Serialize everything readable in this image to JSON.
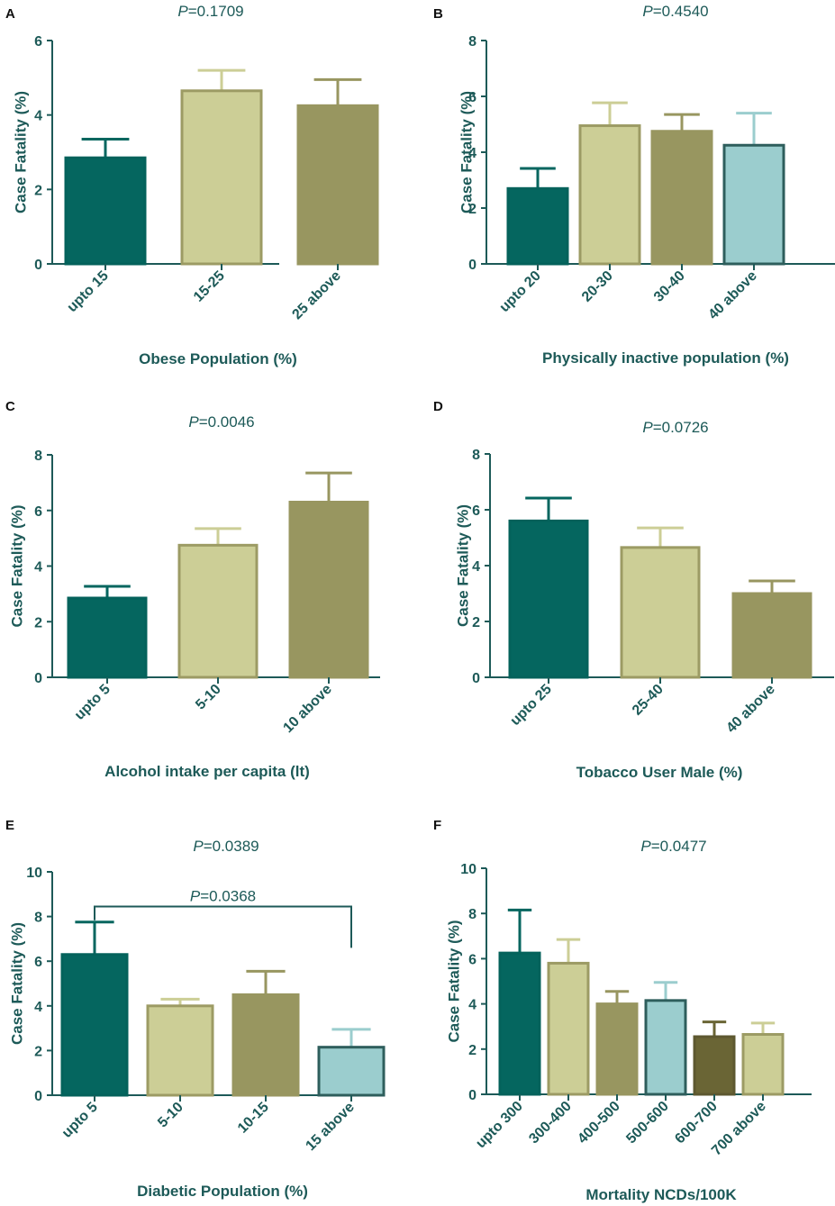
{
  "colors": {
    "axis": "#1d5a58",
    "text": "#1d5a58",
    "letter": "#111111",
    "dark_teal": "#05665f",
    "khaki": "#ccce96",
    "olive": "#989660",
    "light_blue": "#9bcdce",
    "dark_olive": "#6a6535",
    "khaki_border": "#9c9b64",
    "olive_border": "#989660",
    "teal_border": "#04625b",
    "blue_border": "#2e5e5c",
    "dark_olive_border": "#5d5830"
  },
  "chart_data": [
    {
      "type": "bar",
      "panel": "A",
      "title_p": "P",
      "title_value": "=0.1709",
      "xlabel": "Obese Population (%)",
      "ylabel": "Case Fatality (%)",
      "ylim": [
        0,
        6
      ],
      "yticks": [
        "0",
        "2",
        "4",
        "6"
      ],
      "categories": [
        "upto 15",
        "15-25",
        "25 above"
      ],
      "values": [
        2.85,
        4.65,
        4.25
      ],
      "errors": [
        0.5,
        0.55,
        0.7
      ],
      "fills": [
        "dark_teal",
        "khaki",
        "olive"
      ]
    },
    {
      "type": "bar",
      "panel": "B",
      "title_p": "P",
      "title_value": "=0.4540",
      "xlabel": "Physically inactive population (%)",
      "ylabel": "Case Fatality (%)",
      "ylim": [
        0,
        8
      ],
      "yticks": [
        "0",
        "2",
        "4",
        "6",
        "8"
      ],
      "categories": [
        "upto 20",
        "20-30",
        "30-40",
        "40 above"
      ],
      "values": [
        2.7,
        4.95,
        4.75,
        4.25
      ],
      "errors": [
        0.72,
        0.82,
        0.6,
        1.15
      ],
      "fills": [
        "dark_teal",
        "khaki",
        "olive",
        "light_blue"
      ]
    },
    {
      "type": "bar",
      "panel": "C",
      "title_p": "P",
      "title_value": "=0.0046",
      "xlabel": "Alcohol intake per capita (lt)",
      "ylabel": "Case Fatality (%)",
      "ylim": [
        0,
        8
      ],
      "yticks": [
        "0",
        "2",
        "4",
        "6",
        "8"
      ],
      "categories": [
        "upto 5",
        "5-10",
        "10 above"
      ],
      "values": [
        2.85,
        4.75,
        6.3
      ],
      "errors": [
        0.42,
        0.6,
        1.05
      ],
      "fills": [
        "dark_teal",
        "khaki",
        "olive"
      ]
    },
    {
      "type": "bar",
      "panel": "D",
      "title_p": "P",
      "title_value": "=0.0726",
      "xlabel": "Tobacco User Male (%)",
      "ylabel": "Case Fatality (%)",
      "ylim": [
        0,
        8
      ],
      "yticks": [
        "0",
        "2",
        "4",
        "6",
        "8"
      ],
      "categories": [
        "upto 25",
        "25-40",
        "40 above"
      ],
      "values": [
        5.6,
        4.65,
        3.0
      ],
      "errors": [
        0.82,
        0.7,
        0.45
      ],
      "fills": [
        "dark_teal",
        "khaki",
        "olive"
      ]
    },
    {
      "type": "bar",
      "panel": "E",
      "title_p": "P",
      "title_value": "=0.0389",
      "xlabel": "Diabetic Population (%)",
      "ylabel": "Case Fatality (%)",
      "ylim": [
        0,
        10
      ],
      "yticks": [
        "0",
        "2",
        "4",
        "6",
        "8",
        "10"
      ],
      "categories": [
        "upto 5",
        "5-10",
        "10-15",
        "15 above"
      ],
      "values": [
        6.3,
        4.0,
        4.5,
        2.15
      ],
      "errors": [
        1.45,
        0.3,
        1.05,
        0.8
      ],
      "fills": [
        "dark_teal",
        "khaki",
        "olive",
        "light_blue"
      ],
      "bracket": {
        "from": 0,
        "to": 3,
        "y": 8.45,
        "drop_to": 6.6,
        "p": "P",
        "value": "=0.0368"
      }
    },
    {
      "type": "bar",
      "panel": "F",
      "title_p": "P",
      "title_value": "=0.0477",
      "xlabel": "Mortality NCDs/100K",
      "ylabel": "Case Fatality (%)",
      "ylim": [
        0,
        10
      ],
      "yticks": [
        "0",
        "2",
        "4",
        "6",
        "8",
        "10"
      ],
      "categories": [
        "upto 300",
        "300-400",
        "400-500",
        "500-600",
        "600-700",
        "700 above"
      ],
      "values": [
        6.25,
        5.8,
        4.0,
        4.15,
        2.55,
        2.65
      ],
      "errors": [
        1.9,
        1.05,
        0.55,
        0.8,
        0.65,
        0.5
      ],
      "fills": [
        "dark_teal",
        "khaki",
        "olive",
        "light_blue",
        "dark_olive",
        "khaki"
      ]
    }
  ]
}
